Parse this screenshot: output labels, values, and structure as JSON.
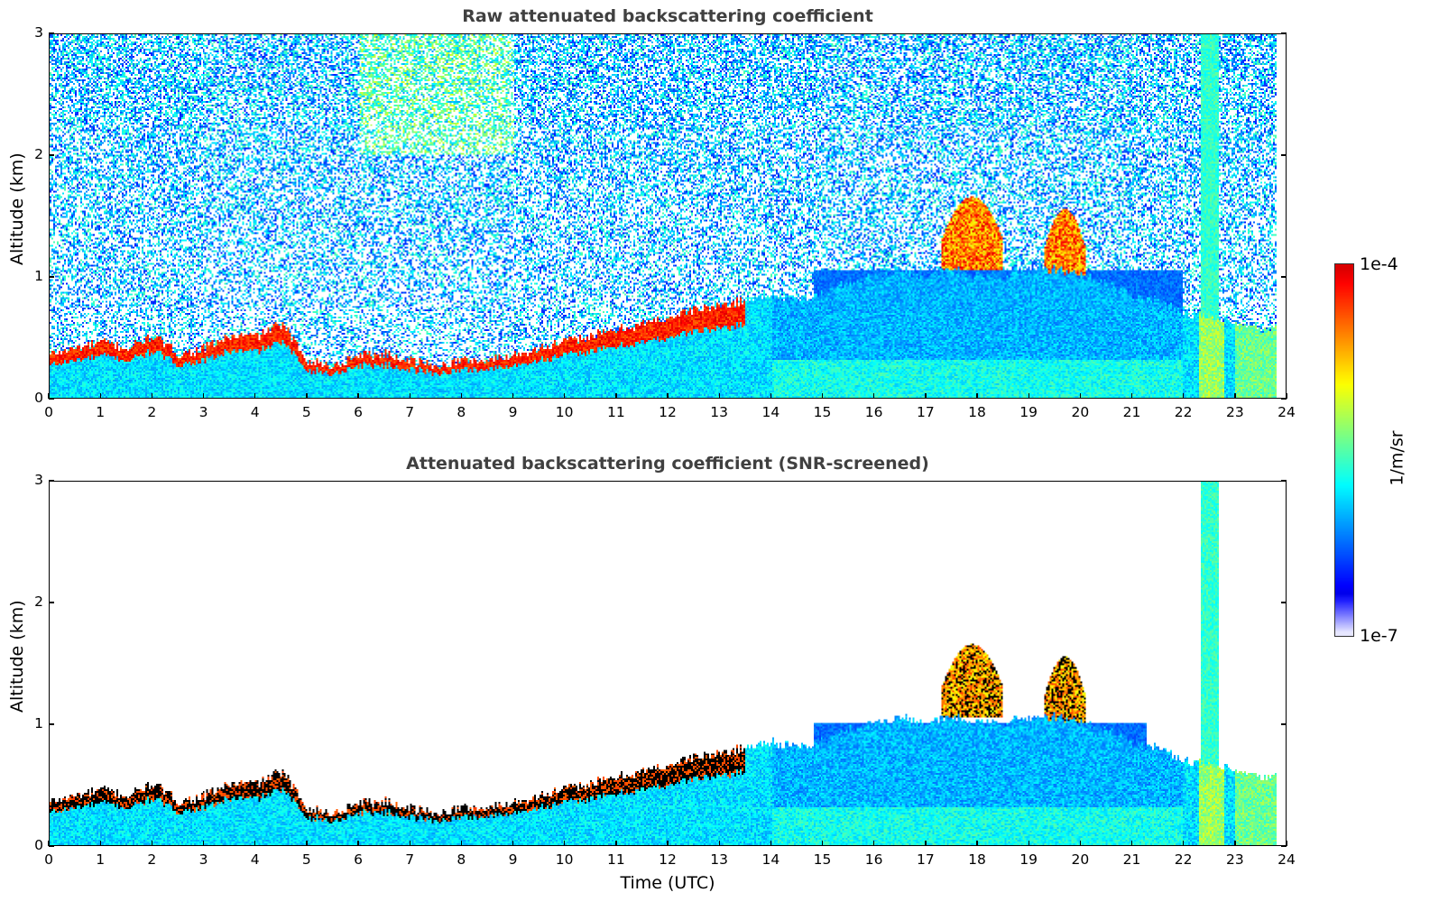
{
  "chart_data": [
    {
      "type": "heatmap",
      "title": "Raw attenuated backscattering coefficient",
      "xlabel": "",
      "ylabel": "Altitude (km)",
      "xlim": [
        0,
        24
      ],
      "ylim": [
        0,
        3
      ],
      "xticks": [
        "0",
        "1",
        "2",
        "3",
        "4",
        "5",
        "6",
        "7",
        "8",
        "9",
        "10",
        "11",
        "12",
        "13",
        "14",
        "15",
        "16",
        "17",
        "18",
        "19",
        "20",
        "21",
        "22",
        "23",
        "24"
      ],
      "yticks": [
        "0",
        "1",
        "2",
        "3"
      ],
      "screened": false
    },
    {
      "type": "heatmap",
      "title": "Attenuated backscattering coefficient (SNR-screened)",
      "xlabel": "Time (UTC)",
      "ylabel": "Altitude (km)",
      "xlim": [
        0,
        24
      ],
      "ylim": [
        0,
        3
      ],
      "xticks": [
        "0",
        "1",
        "2",
        "3",
        "4",
        "5",
        "6",
        "7",
        "8",
        "9",
        "10",
        "11",
        "12",
        "13",
        "14",
        "15",
        "16",
        "17",
        "18",
        "19",
        "20",
        "21",
        "22",
        "23",
        "24"
      ],
      "yticks": [
        "0",
        "1",
        "2",
        "3"
      ],
      "screened": true
    }
  ],
  "colorbar": {
    "label": "1/m/sr",
    "max_label": "1e-4",
    "min_label": "1e-7",
    "vmin": 1e-07,
    "vmax": 0.0001,
    "scale": "log",
    "colormap": "jet"
  },
  "profile": {
    "time_utc": [
      0,
      0.5,
      1,
      1.5,
      2,
      2.5,
      3,
      3.5,
      4,
      4.5,
      5,
      5.5,
      6,
      6.5,
      7,
      7.5,
      8,
      8.5,
      9,
      9.5,
      10,
      10.5,
      11,
      11.5,
      12,
      12.5,
      13,
      13.5,
      14,
      14.5,
      15,
      15.5,
      16,
      16.5,
      17,
      17.5,
      18,
      18.5,
      19,
      19.5,
      20,
      20.5,
      21,
      21.5,
      22,
      22.5,
      23,
      23.5,
      23.8
    ],
    "layer_top_km": [
      0.35,
      0.4,
      0.45,
      0.4,
      0.5,
      0.35,
      0.4,
      0.5,
      0.5,
      0.6,
      0.3,
      0.25,
      0.35,
      0.35,
      0.3,
      0.25,
      0.3,
      0.3,
      0.35,
      0.4,
      0.45,
      0.5,
      0.55,
      0.6,
      0.65,
      0.72,
      0.75,
      0.8,
      0.85,
      0.8,
      0.85,
      0.95,
      1.0,
      1.05,
      1.0,
      1.05,
      1.0,
      1.0,
      1.05,
      1.05,
      1.0,
      0.95,
      0.85,
      0.8,
      0.7,
      0.65,
      0.6,
      0.55,
      0.55
    ]
  },
  "clouds": [
    {
      "t_start": 17.3,
      "t_end": 18.5,
      "base_km": 1.05,
      "top_km": 1.65
    },
    {
      "t_start": 19.3,
      "t_end": 20.1,
      "base_km": 1.0,
      "top_km": 1.55
    },
    {
      "t_start": 22.35,
      "t_end": 22.7,
      "base_km": 0.0,
      "top_km": 3.0
    }
  ]
}
